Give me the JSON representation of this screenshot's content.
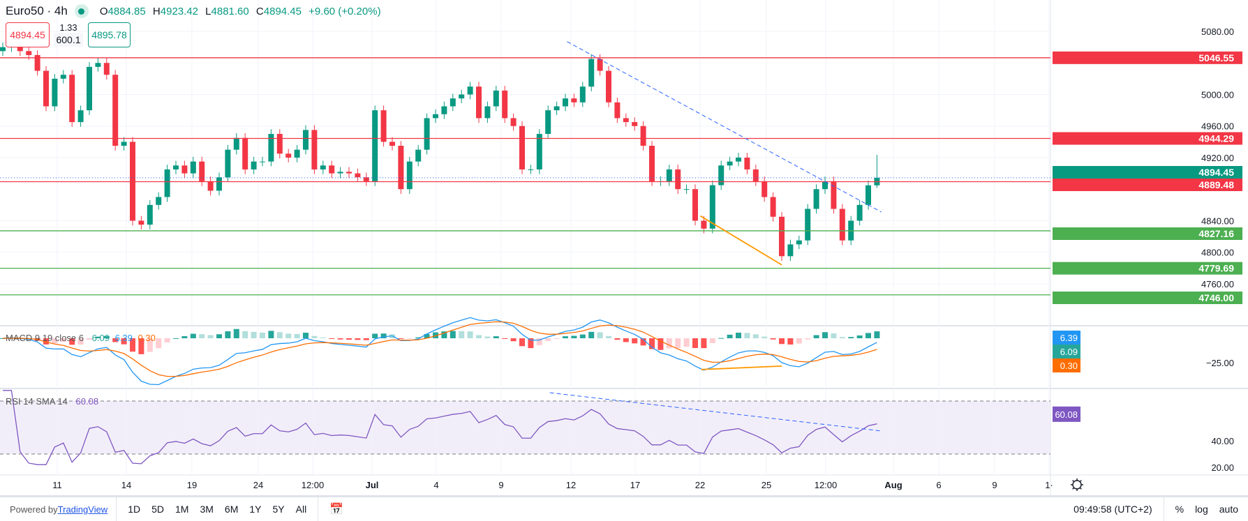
{
  "header": {
    "symbol": "Euro50 · 4h",
    "o_label": "O",
    "o": "4884.85",
    "h_label": "H",
    "h": "4923.42",
    "l_label": "L",
    "l": "4881.60",
    "c_label": "C",
    "c": "4894.45",
    "change": "+9.60 (+0.20%)",
    "sell_price": "4894.45",
    "spread_top": "1.33",
    "spread_bottom": "600.1",
    "buy_price": "4895.78",
    "status_color": "#089981"
  },
  "chart_data": {
    "type": "candlestick",
    "closes": [
      5060,
      5065,
      5055,
      5050,
      5030,
      4985,
      5020,
      5025,
      4965,
      4980,
      5035,
      5040,
      5025,
      4935,
      4940,
      4840,
      4835,
      4860,
      4870,
      4905,
      4910,
      4900,
      4915,
      4890,
      4878,
      4895,
      4930,
      4945,
      4905,
      4915,
      4915,
      4950,
      4925,
      4920,
      4930,
      4955,
      4905,
      4910,
      4900,
      4902,
      4900,
      4895,
      4890,
      4980,
      4940,
      4935,
      4880,
      4915,
      4930,
      4970,
      4975,
      4985,
      4995,
      5000,
      5010,
      4970,
      4985,
      5005,
      4970,
      4960,
      4905,
      4905,
      4950,
      4980,
      4985,
      4995,
      4990,
      5010,
      5045,
      5030,
      4990,
      4970,
      4965,
      4960,
      4935,
      4890,
      4890,
      4905,
      4880,
      4880,
      4840,
      4830,
      4885,
      4910,
      4915,
      4920,
      4905,
      4890,
      4870,
      4845,
      4795,
      4810,
      4815,
      4855,
      4880,
      4890,
      4855,
      4815,
      4840,
      4860,
      4884.85,
      4894.45
    ],
    "last_candle": {
      "o": 4884.85,
      "h": 4923.42,
      "l": 4881.6,
      "c": 4894.45
    },
    "price_axis": {
      "ticks": [
        "5080.00",
        "5000.00",
        "4960.00",
        "4920.00",
        "4840.00",
        "4800.00",
        "4760.00"
      ],
      "range": [
        4730,
        5110
      ]
    },
    "levels": [
      {
        "price": 5046.55,
        "label": "5046.55",
        "color": "#f23645"
      },
      {
        "price": 4944.29,
        "label": "4944.29",
        "color": "#f23645"
      },
      {
        "price": 4889.48,
        "label": "4889.48",
        "color": "#f23645"
      },
      {
        "price": 4827.16,
        "label": "4827.16",
        "color": "#4caf50"
      },
      {
        "price": 4779.69,
        "label": "4779.69",
        "color": "#4caf50"
      },
      {
        "price": 4746.0,
        "label": "4746.00",
        "color": "#4caf50"
      }
    ],
    "current_price": {
      "price": 4894.45,
      "label": "4894.45",
      "color": "#089981"
    },
    "trendlines": [
      {
        "pane": "price",
        "from": [
          65.2,
          5067
        ],
        "to": [
          101.5,
          4851
        ],
        "color": "#2962ff",
        "style": "dashed"
      },
      {
        "pane": "price",
        "from": [
          80.6,
          4846
        ],
        "to": [
          90,
          4784
        ],
        "color": "#ff9800",
        "style": "solid"
      },
      {
        "pane": "macd",
        "from": [
          80.7,
          -32
        ],
        "to": [
          90,
          -28.5
        ],
        "color": "#ff9800",
        "style": "solid"
      },
      {
        "pane": "rsi",
        "from": [
          63.2,
          76.3
        ],
        "to": [
          101.5,
          47.4
        ],
        "color": "#2962ff",
        "style": "dashed"
      }
    ],
    "time_axis": [
      "11",
      "14",
      "19",
      "24",
      "12:00",
      "Jul",
      "4",
      "9",
      "12",
      "17",
      "22",
      "25",
      "12:00",
      "Aug",
      "6",
      "9",
      "1·"
    ],
    "macd": {
      "title": "MACD 9 19 close 6",
      "hist": "6.09",
      "macd": "6.39",
      "signal": "0.30",
      "tick": "−25.00",
      "macd_color": "#2196f3",
      "signal_color": "#ff6d00"
    },
    "rsi": {
      "title": "RSI 14 SMA 14",
      "value": "60.08",
      "ticks": [
        "40.00",
        "20.00"
      ],
      "color": "#7e57c2",
      "bands": [
        30,
        70
      ]
    },
    "colors": {
      "up": "#089981",
      "down": "#f23645"
    }
  },
  "toolbar": {
    "powered": "Powered by ",
    "brand": "TradingView",
    "ranges": [
      "1D",
      "5D",
      "1M",
      "3M",
      "6M",
      "1Y",
      "5Y",
      "All"
    ],
    "time": "09:49:58 (UTC+2)",
    "percent": "%",
    "log": "log",
    "auto": "auto"
  }
}
